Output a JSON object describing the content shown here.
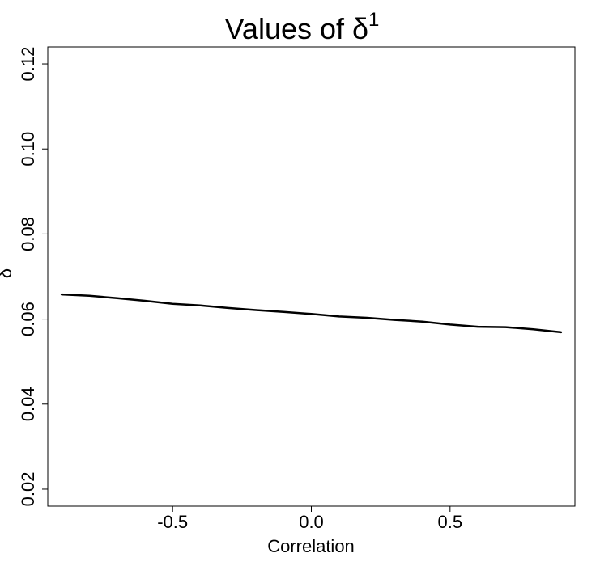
{
  "chart_data": {
    "type": "line",
    "title": "Values of δ",
    "title_superscript": "1",
    "xlabel": "Correlation",
    "ylabel": "δ",
    "xlim": [
      -0.95,
      0.95
    ],
    "ylim": [
      0.016,
      0.124
    ],
    "x_ticks": [
      -0.5,
      0.0,
      0.5
    ],
    "x_tick_labels": [
      "-0.5",
      "0.0",
      "0.5"
    ],
    "y_ticks": [
      0.02,
      0.04,
      0.06,
      0.08,
      0.1,
      0.12
    ],
    "y_tick_labels": [
      "0.02",
      "0.04",
      "0.06",
      "0.08",
      "0.10",
      "0.12"
    ],
    "grid": false,
    "series": [
      {
        "color": "#000000",
        "x": [
          -0.9,
          -0.8,
          -0.7,
          -0.6,
          -0.5,
          -0.4,
          -0.3,
          -0.2,
          -0.1,
          0.0,
          0.1,
          0.2,
          0.3,
          0.4,
          0.5,
          0.6,
          0.7,
          0.8,
          0.9
        ],
        "y": [
          0.0658,
          0.0655,
          0.0649,
          0.0643,
          0.0636,
          0.0632,
          0.0626,
          0.0621,
          0.0617,
          0.0612,
          0.0606,
          0.0603,
          0.0598,
          0.0594,
          0.0587,
          0.0582,
          0.0581,
          0.0576,
          0.0569
        ]
      }
    ]
  }
}
